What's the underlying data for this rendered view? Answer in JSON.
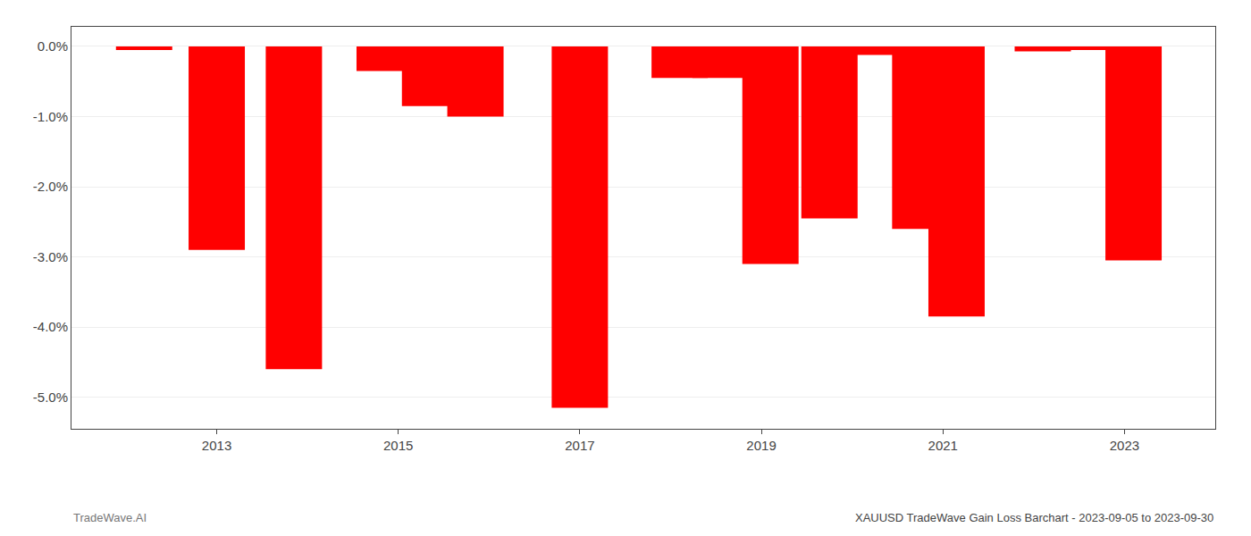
{
  "chart_data": {
    "type": "bar",
    "title": "XAUUSD TradeWave Gain Loss Barchart - 2023-09-05 to 2023-09-30",
    "annotations": [
      "TradeWave.AI"
    ],
    "x": [
      2012.2,
      2013.0,
      2013.85,
      2014.85,
      2015.35,
      2015.85,
      2017.0,
      2018.1,
      2018.55,
      2019.1,
      2019.75,
      2020.2,
      2020.75,
      2021.15,
      2022.1,
      2022.55,
      2023.1
    ],
    "values": [
      -0.05,
      -2.9,
      -4.6,
      -0.35,
      -0.85,
      -1.0,
      -5.15,
      -0.45,
      -0.45,
      -3.1,
      -2.45,
      -0.12,
      -2.6,
      -3.85,
      -0.07,
      -0.05,
      -3.05
    ],
    "color": "#FF0000",
    "xlim": [
      2011.4,
      2024.0
    ],
    "xticks": [
      2013,
      2015,
      2017,
      2019,
      2021,
      2023
    ],
    "ylim": [
      -5.45,
      0.28
    ],
    "yticks": [
      {
        "value": 0.0,
        "label": "0.0%"
      },
      {
        "value": -1.0,
        "label": "-1.0%"
      },
      {
        "value": -2.0,
        "label": "-2.0%"
      },
      {
        "value": -3.0,
        "label": "-3.0%"
      },
      {
        "value": -4.0,
        "label": "-4.0%"
      },
      {
        "value": -5.0,
        "label": "-5.0%"
      }
    ],
    "grid": true
  }
}
